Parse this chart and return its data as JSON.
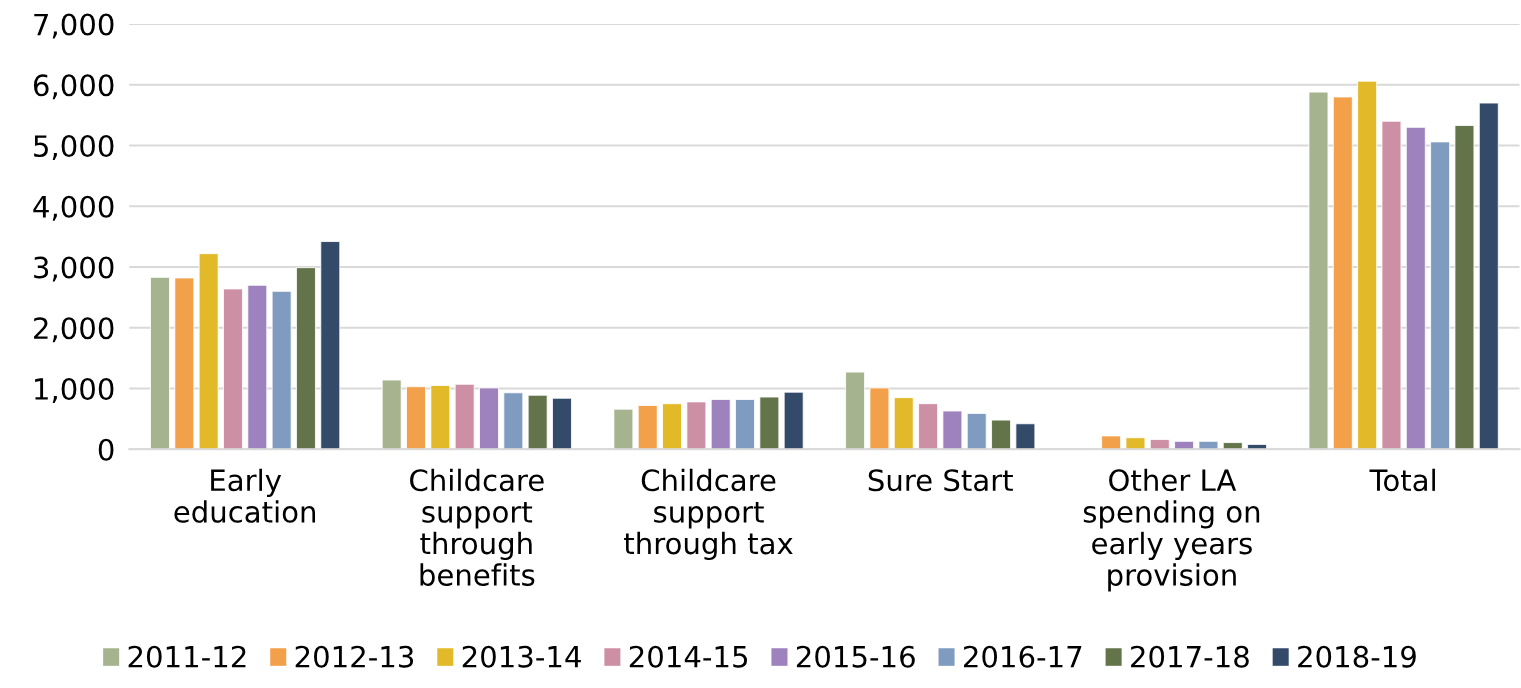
{
  "chart_data": {
    "type": "bar",
    "categories": [
      "Early\neducation",
      "Childcare\nsupport\nthrough\nbenefits",
      "Childcare\nsupport\nthrough tax",
      "Sure Start",
      "Other LA\nspending on\nearly years\nprovision",
      "Total"
    ],
    "series": [
      {
        "name": "2011-12",
        "color": "#a5b38f",
        "values": [
          2830,
          1140,
          660,
          1270,
          null,
          5880
        ]
      },
      {
        "name": "2012-13",
        "color": "#f2a049",
        "values": [
          2820,
          1030,
          720,
          1010,
          220,
          5800
        ]
      },
      {
        "name": "2013-14",
        "color": "#e2b928",
        "values": [
          3220,
          1050,
          750,
          850,
          190,
          6060
        ]
      },
      {
        "name": "2014-15",
        "color": "#cd8fa3",
        "values": [
          2640,
          1070,
          780,
          750,
          160,
          5400
        ]
      },
      {
        "name": "2015-16",
        "color": "#9e82bd",
        "values": [
          2700,
          1010,
          820,
          630,
          130,
          5300
        ]
      },
      {
        "name": "2016-17",
        "color": "#7f9bbf",
        "values": [
          2600,
          930,
          820,
          590,
          130,
          5060
        ]
      },
      {
        "name": "2017-18",
        "color": "#63744a",
        "values": [
          2990,
          890,
          860,
          480,
          110,
          5330
        ]
      },
      {
        "name": "2018-19",
        "color": "#344a69",
        "values": [
          3420,
          840,
          940,
          420,
          80,
          5700
        ]
      }
    ],
    "ylim": [
      0,
      7000
    ],
    "yticks": [
      0,
      {
        "value": 1000,
        "label": "1,000"
      },
      {
        "value": 2000,
        "label": "2,000"
      },
      {
        "value": 3000,
        "label": "3,000"
      },
      {
        "value": 4000,
        "label": "4,000"
      },
      {
        "value": 5000,
        "label": "5,000"
      },
      {
        "value": 6000,
        "label": "6,000"
      },
      {
        "value": 7000,
        "label": "7,000"
      }
    ],
    "grid": "y",
    "legend": "bottom"
  }
}
